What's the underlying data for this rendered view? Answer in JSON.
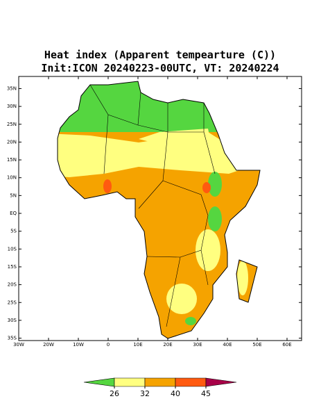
{
  "map": {
    "title": [
      "Heat index (Apparent tempearture (C))",
      "Init:ICON 20240223-00UTC, VT: 20240224"
    ],
    "lat_ticks": [
      {
        "value": 35,
        "label": "35N"
      },
      {
        "value": 30,
        "label": "30N"
      },
      {
        "value": 25,
        "label": "25N"
      },
      {
        "value": 20,
        "label": "20N"
      },
      {
        "value": 15,
        "label": "15N"
      },
      {
        "value": 10,
        "label": "10N"
      },
      {
        "value": 5,
        "label": "5N"
      },
      {
        "value": 0,
        "label": "EQ"
      },
      {
        "value": -5,
        "label": "5S"
      },
      {
        "value": -10,
        "label": "10S"
      },
      {
        "value": -15,
        "label": "15S"
      },
      {
        "value": -20,
        "label": "20S"
      },
      {
        "value": -25,
        "label": "25S"
      },
      {
        "value": -30,
        "label": "30S"
      },
      {
        "value": -35,
        "label": "35S"
      }
    ],
    "lon_ticks": [
      {
        "value": -30,
        "label": "30W"
      },
      {
        "value": -20,
        "label": "20W"
      },
      {
        "value": -10,
        "label": "10W"
      },
      0,
      {
        "value": 10,
        "label": "10E"
      },
      {
        "value": 20,
        "label": "20E"
      },
      {
        "value": 30,
        "label": "30E"
      },
      {
        "value": 40,
        "label": "40E"
      },
      {
        "value": 50,
        "label": "50E"
      },
      {
        "value": 60,
        "label": "60E"
      }
    ],
    "colorbar": {
      "levels": [
        26,
        32,
        40,
        45
      ],
      "colors": [
        "#55d640",
        "#ffff80",
        "#f5a300",
        "#ff5a10",
        "#a80048"
      ]
    }
  }
}
